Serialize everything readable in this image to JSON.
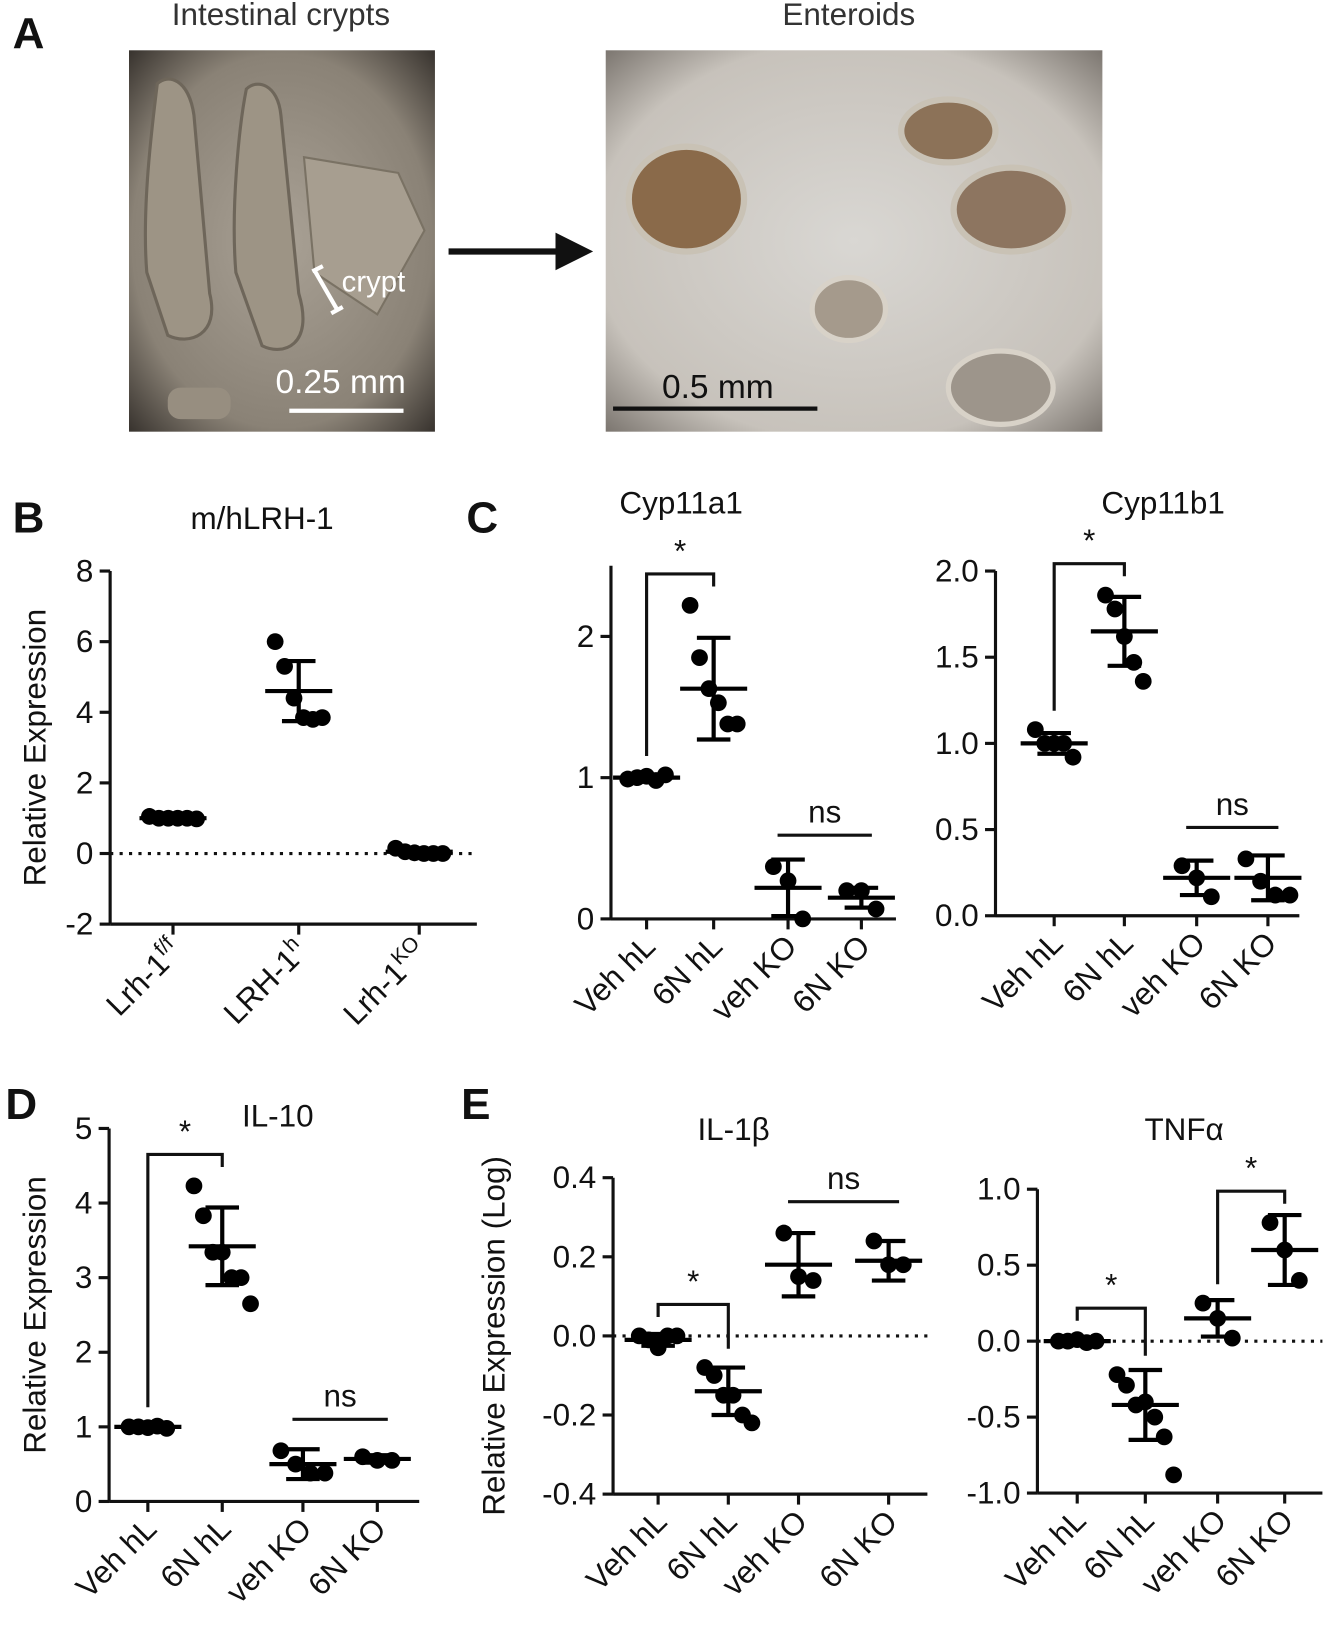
{
  "panel_labels": [
    "A",
    "B",
    "C",
    "D",
    "E"
  ],
  "panel_a": {
    "left_title": "Intestinal crypts",
    "right_title": "Enteroids",
    "crypt_label": "crypt",
    "left_scale": "0.25 mm",
    "right_scale": "0.5 mm"
  },
  "chart_data": [
    {
      "type": "dot",
      "title": "m/hLRH-1",
      "y_label": "Relative Expression",
      "color": "#000000",
      "zero_line": true,
      "categories": [
        {
          "base": "Lrh-1",
          "sup": "f/f"
        },
        {
          "base": "LRH-1",
          "sup": "h"
        },
        {
          "base": "Lrh-1",
          "sup": "KO"
        }
      ],
      "groups": [
        [
          1.05,
          1.0,
          1.0,
          1.0,
          1.0,
          0.98
        ],
        [
          6.0,
          5.3,
          4.4,
          3.85,
          3.8,
          3.85
        ],
        [
          0.15,
          0.05,
          0.02,
          0.0,
          0.0,
          0.0
        ]
      ],
      "means": [
        1.0,
        4.6,
        0.05
      ],
      "sds": [
        0.03,
        0.85,
        0.05
      ],
      "ylim": [
        -2,
        8
      ],
      "yticks": [
        -2,
        0,
        2,
        4,
        6,
        8
      ],
      "comparisons": []
    },
    {
      "type": "dot",
      "title": "Cyp11a1",
      "color": "#000000",
      "zero_line": false,
      "categories": [
        "Veh hL",
        "6N hL",
        "veh KO",
        "6N KO"
      ],
      "groups": [
        [
          0.99,
          1.0,
          1.01,
          0.98,
          1.02
        ],
        [
          2.22,
          1.85,
          1.63,
          1.53,
          1.38,
          1.38
        ],
        [
          0.37,
          0.27,
          0.0
        ],
        [
          0.2,
          0.2,
          0.07
        ]
      ],
      "means": [
        1.0,
        1.63,
        0.22,
        0.15
      ],
      "sds": [
        0.02,
        0.36,
        0.2,
        0.07
      ],
      "ylim": [
        0,
        2.5
      ],
      "yticks": [
        0,
        1,
        2
      ],
      "comparisons": [
        {
          "groups": [
            0,
            1
          ],
          "label": "*",
          "style": "bracket"
        },
        {
          "groups": [
            2,
            3
          ],
          "label": "ns",
          "style": "line"
        }
      ]
    },
    {
      "type": "dot",
      "title": "Cyp11b1",
      "color": "#000000",
      "zero_line": false,
      "categories": [
        "Veh hL",
        "6N hL",
        "veh KO",
        "6N KO"
      ],
      "groups": [
        [
          1.08,
          1.0,
          1.0,
          1.0,
          0.92
        ],
        [
          1.86,
          1.78,
          1.62,
          1.47,
          1.36
        ],
        [
          0.29,
          0.22,
          0.11
        ],
        [
          0.33,
          0.2,
          0.12,
          0.12
        ]
      ],
      "means": [
        1.0,
        1.65,
        0.22,
        0.22
      ],
      "sds": [
        0.06,
        0.2,
        0.1,
        0.13
      ],
      "ylim": [
        0,
        2.0
      ],
      "yticks": [
        {
          "value": 0,
          "label": "0.0"
        },
        0.5,
        {
          "value": 1,
          "label": "1.0"
        },
        1.5,
        {
          "value": 2,
          "label": "2.0"
        }
      ],
      "comparisons": [
        {
          "groups": [
            0,
            1
          ],
          "label": "*",
          "style": "bracket"
        },
        {
          "groups": [
            2,
            3
          ],
          "label": "ns",
          "style": "line"
        }
      ]
    },
    {
      "type": "dot",
      "title": "IL-10",
      "y_label": "Relative Expression",
      "color": "#000000",
      "zero_line": false,
      "categories": [
        "Veh hL",
        "6N hL",
        "veh KO",
        "6N KO"
      ],
      "groups": [
        [
          1.0,
          1.0,
          0.99,
          1.01,
          0.98
        ],
        [
          4.23,
          3.83,
          3.34,
          3.34,
          3.0,
          3.0,
          2.65
        ],
        [
          0.68,
          0.5,
          0.38,
          0.38
        ],
        [
          0.6,
          0.55,
          0.55
        ]
      ],
      "means": [
        1.0,
        3.42,
        0.5,
        0.57
      ],
      "sds": [
        0.02,
        0.52,
        0.2,
        0.05
      ],
      "ylim": [
        0,
        5
      ],
      "yticks": [
        0,
        1,
        2,
        3,
        4,
        5
      ],
      "comparisons": [
        {
          "groups": [
            0,
            1
          ],
          "label": "*",
          "style": "bracket"
        },
        {
          "groups": [
            2,
            3
          ],
          "label": "ns",
          "style": "line"
        }
      ]
    },
    {
      "type": "dot",
      "title": "IL-1β",
      "y_label": "Relative Expression (Log)",
      "color": "#000000",
      "zero_line": true,
      "categories": [
        "Veh hL",
        "6N hL",
        "veh KO",
        "6N KO"
      ],
      "groups": [
        [
          0.0,
          -0.01,
          -0.03,
          0.0,
          0.0
        ],
        [
          -0.08,
          -0.1,
          -0.15,
          -0.15,
          -0.2,
          -0.22
        ],
        [
          0.26,
          0.15,
          0.14
        ],
        [
          0.24,
          0.18,
          0.18
        ]
      ],
      "means": [
        -0.01,
        -0.14,
        0.18,
        0.19
      ],
      "sds": [
        0.015,
        0.06,
        0.08,
        0.05
      ],
      "ylim": [
        -0.4,
        0.4
      ],
      "yticks": [
        -0.4,
        -0.2,
        {
          "value": 0,
          "label": "0.0"
        },
        0.2,
        0.4
      ],
      "comparisons": [
        {
          "groups": [
            0,
            1
          ],
          "label": "*",
          "style": "bracket"
        },
        {
          "groups": [
            2,
            3
          ],
          "label": "ns",
          "style": "line"
        }
      ]
    },
    {
      "type": "dot",
      "title": "TNFα",
      "color": "#000000",
      "zero_line": true,
      "categories": [
        "Veh hL",
        "6N hL",
        "veh KO",
        "6N KO"
      ],
      "groups": [
        [
          0.0,
          0.0,
          0.01,
          -0.01,
          0.0
        ],
        [
          -0.22,
          -0.29,
          -0.42,
          -0.4,
          -0.5,
          -0.63,
          -0.88
        ],
        [
          0.25,
          0.15,
          0.02
        ],
        [
          0.78,
          0.6,
          0.4
        ]
      ],
      "means": [
        0.0,
        -0.42,
        0.15,
        0.6
      ],
      "sds": [
        0.02,
        0.23,
        0.12,
        0.23
      ],
      "ylim": [
        -1.0,
        1.0
      ],
      "yticks": [
        {
          "value": -1,
          "label": "-1.0"
        },
        -0.5,
        {
          "value": 0,
          "label": "0.0"
        },
        0.5,
        {
          "value": 1,
          "label": "1.0"
        }
      ],
      "comparisons": [
        {
          "groups": [
            0,
            1
          ],
          "label": "*",
          "style": "bracket"
        },
        {
          "groups": [
            2,
            3
          ],
          "label": "*",
          "style": "bracket"
        }
      ]
    }
  ]
}
